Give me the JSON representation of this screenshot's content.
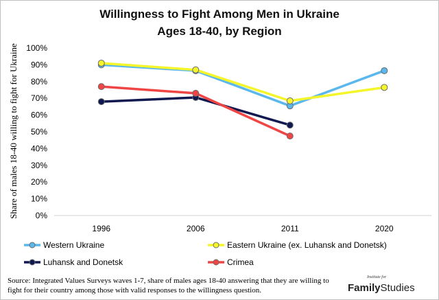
{
  "chart_data": {
    "type": "line",
    "title_lines": [
      "Willingness to Fight Among Men in Ukraine",
      "Ages 18-40, by Region"
    ],
    "ylabel": "Share of males 18-40 willing to fight for Ukraine",
    "xlabel": "",
    "categories": [
      "1996",
      "2006",
      "2011",
      "2020"
    ],
    "ylim": [
      0,
      100
    ],
    "yticks": [
      "0%",
      "10%",
      "20%",
      "30%",
      "40%",
      "50%",
      "60%",
      "70%",
      "80%",
      "90%",
      "100%"
    ],
    "grid": false,
    "legend_position": "bottom",
    "series": [
      {
        "name": "Western Ukraine",
        "color": "#5bb8ec",
        "values": [
          90,
          86.5,
          65.5,
          86.5
        ]
      },
      {
        "name": "Eastern Ukraine (ex. Luhansk and Donetsk)",
        "color": "#f5f52c",
        "values": [
          91,
          87,
          68.5,
          76.5
        ]
      },
      {
        "name": "Luhansk and Donetsk",
        "color": "#101850",
        "values": [
          68,
          70.5,
          54,
          null
        ]
      },
      {
        "name": "Crimea",
        "color": "#f04545",
        "values": [
          77,
          73,
          47.5,
          null
        ]
      }
    ]
  },
  "source_text": "Source: Integrated Values Surveys waves 1-7, share of males ages 18-40 answering that they are willing to fight for their country among those with valid responses to the willingness question.",
  "logo": {
    "small": "Institute for",
    "family": "Family",
    "studies": "Studies"
  }
}
